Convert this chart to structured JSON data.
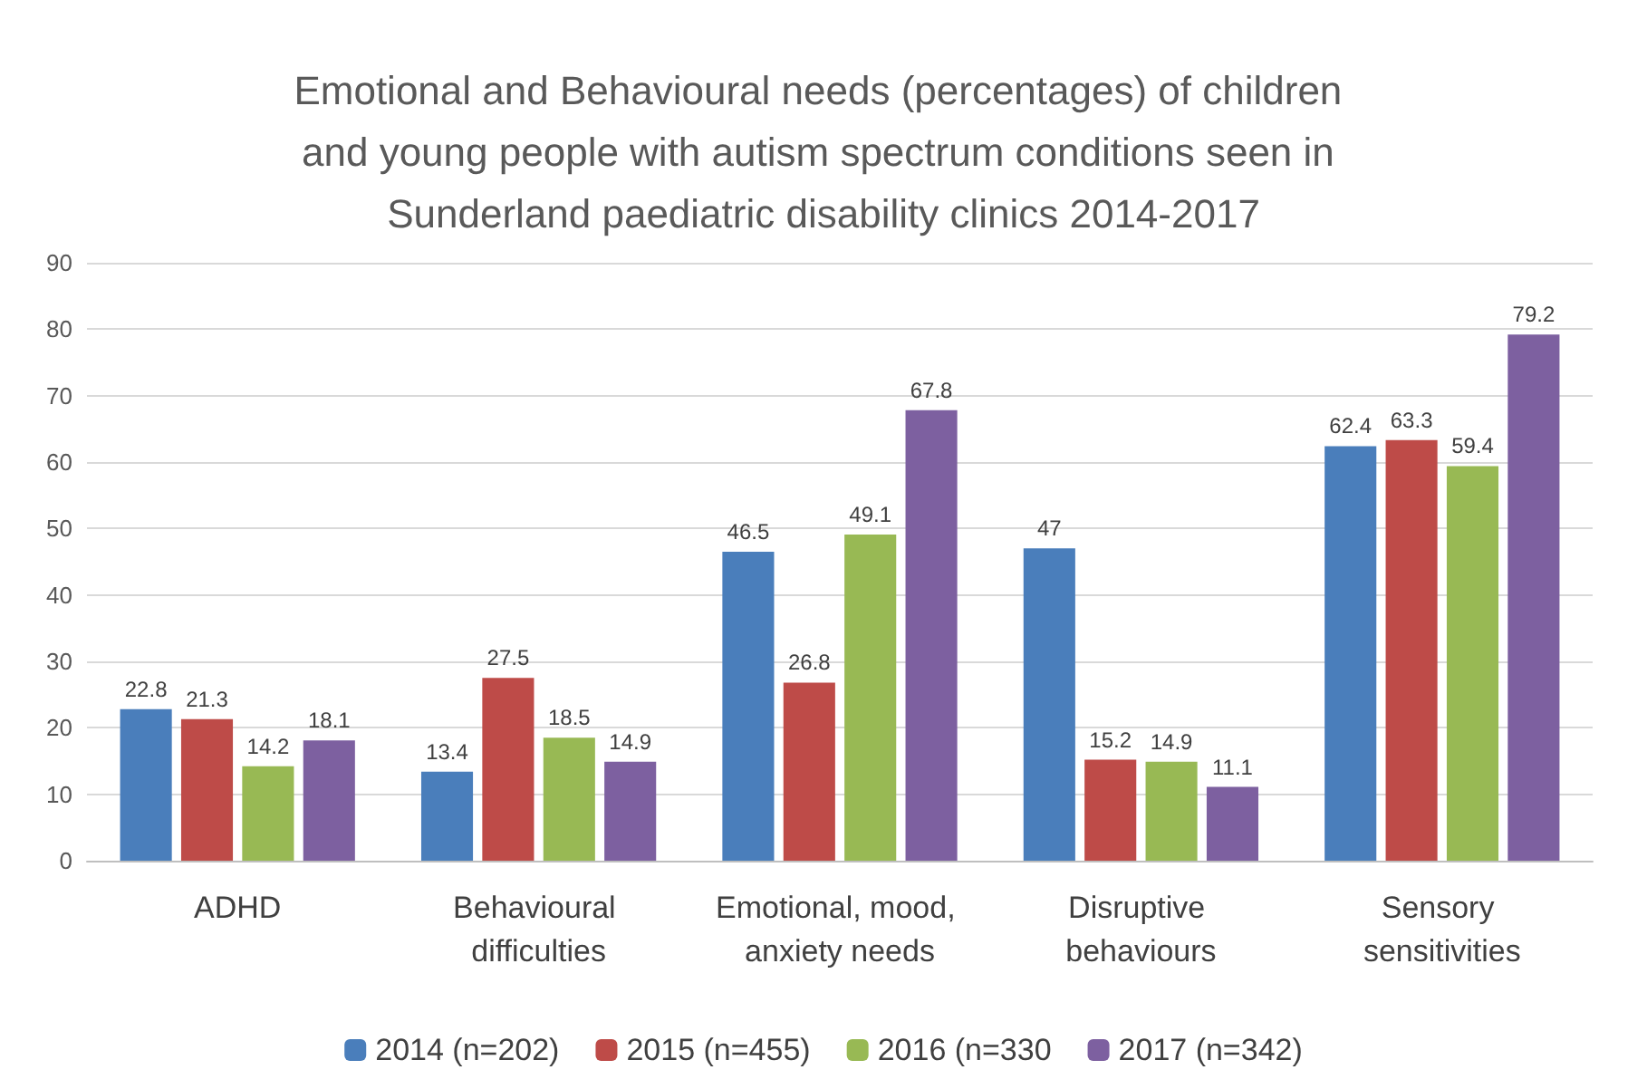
{
  "chart_data": {
    "type": "bar",
    "title": "Emotional and Behavioural needs (percentages) of children and young people with autism spectrum conditions seen in Sunderland paediatric disability clinics 2014-2017",
    "categories": [
      "ADHD",
      "Behavioural difficulties",
      "Emotional, mood, anxiety needs",
      "Disruptive behaviours",
      "Sensory sensitivities"
    ],
    "series": [
      {
        "name": "2014 (n=202)",
        "color": "#4a7ebb",
        "values": [
          22.8,
          13.4,
          46.5,
          47,
          62.4
        ]
      },
      {
        "name": "2015 (n=455)",
        "color": "#be4b48",
        "values": [
          21.3,
          27.5,
          26.8,
          15.2,
          63.3
        ]
      },
      {
        "name": "2016 (n=330",
        "color": "#98b954",
        "values": [
          14.2,
          18.5,
          49.1,
          14.9,
          59.4
        ]
      },
      {
        "name": "2017 (n=342)",
        "color": "#7d60a0",
        "values": [
          18.1,
          14.9,
          67.8,
          11.1,
          79.2
        ]
      }
    ],
    "ylim": [
      0,
      90
    ],
    "yticks": [
      0,
      10,
      20,
      30,
      40,
      50,
      60,
      70,
      80,
      90
    ],
    "grid": "y",
    "legend": "bottom",
    "data_labels": true
  }
}
